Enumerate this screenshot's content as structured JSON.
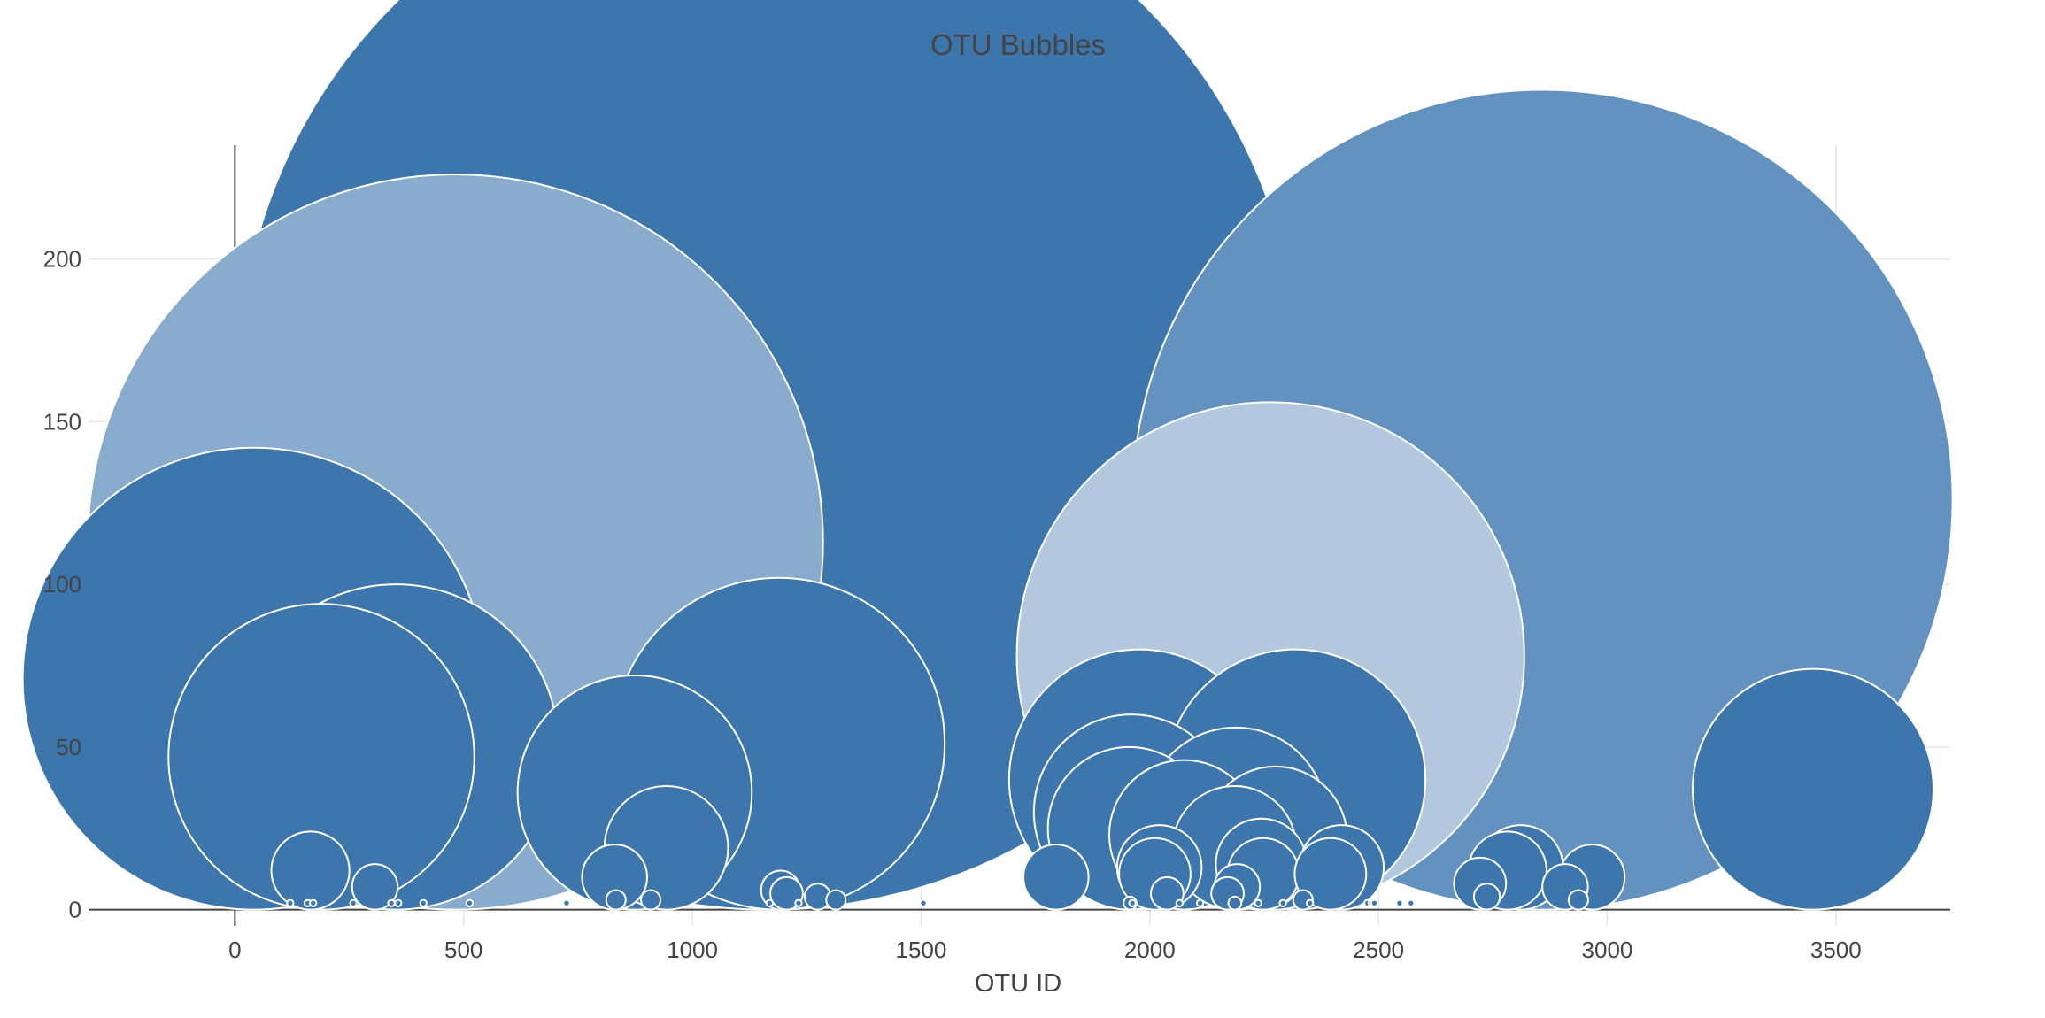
{
  "chart_data": {
    "type": "scatter",
    "title": "OTU Bubbles",
    "xlabel": "OTU ID",
    "ylabel": "",
    "xlim": [
      -320,
      3750
    ],
    "ylim": [
      -5,
      235
    ],
    "x_ticks": [
      0,
      500,
      1000,
      1500,
      2000,
      2500,
      3000,
      3500
    ],
    "y_ticks": [
      0,
      50,
      100,
      150,
      200
    ],
    "grid": true,
    "legend": "none",
    "colors": {
      "dark": "#3d76ad",
      "medium": "#6391c0",
      "light": "#89abcd",
      "pale": "#b3c8df"
    },
    "series": [
      {
        "marker": "bubble",
        "points": [
          {
            "x": 1167,
            "y": 163,
            "r": 163,
            "color": "#3d76ad"
          },
          {
            "x": 2859,
            "y": 126,
            "r": 126,
            "color": "#6391c0"
          },
          {
            "x": 482,
            "y": 113,
            "r": 113,
            "color": "#89abcd"
          },
          {
            "x": 2264,
            "y": 78,
            "r": 78,
            "color": "#b3c8df"
          },
          {
            "x": 41,
            "y": 71,
            "r": 71,
            "color": "#3d76ad"
          },
          {
            "x": 1189,
            "y": 51,
            "r": 51,
            "color": "#3d76ad"
          },
          {
            "x": 352,
            "y": 50,
            "r": 50,
            "color": "#3d76ad"
          },
          {
            "x": 189,
            "y": 47,
            "r": 47,
            "color": "#3d76ad"
          },
          {
            "x": 1977,
            "y": 40,
            "r": 40,
            "color": "#3d76ad"
          },
          {
            "x": 2318,
            "y": 40,
            "r": 40,
            "color": "#3d76ad"
          },
          {
            "x": 3450,
            "y": 37,
            "r": 37,
            "color": "#3d76ad"
          },
          {
            "x": 874,
            "y": 36,
            "r": 36,
            "color": "#3d76ad"
          },
          {
            "x": 1960,
            "y": 30,
            "r": 30,
            "color": "#3d76ad"
          },
          {
            "x": 2188,
            "y": 28,
            "r": 28,
            "color": "#3d76ad"
          },
          {
            "x": 1955,
            "y": 25,
            "r": 25,
            "color": "#3d76ad"
          },
          {
            "x": 2075,
            "y": 23,
            "r": 23,
            "color": "#3d76ad"
          },
          {
            "x": 2275,
            "y": 22,
            "r": 22,
            "color": "#3d76ad"
          },
          {
            "x": 943,
            "y": 19,
            "r": 19,
            "color": "#3d76ad"
          },
          {
            "x": 2185,
            "y": 19,
            "r": 19,
            "color": "#3d76ad"
          },
          {
            "x": 2244,
            "y": 14,
            "r": 14,
            "color": "#3d76ad"
          },
          {
            "x": 2021,
            "y": 13,
            "r": 13,
            "color": "#3d76ad"
          },
          {
            "x": 2419,
            "y": 13,
            "r": 13,
            "color": "#3d76ad"
          },
          {
            "x": 2811,
            "y": 13,
            "r": 13,
            "color": "#3d76ad"
          },
          {
            "x": 165,
            "y": 12,
            "r": 12,
            "color": "#3d76ad"
          },
          {
            "x": 2782,
            "y": 12,
            "r": 12,
            "color": "#3d76ad"
          },
          {
            "x": 2011,
            "y": 11,
            "r": 11,
            "color": "#3d76ad"
          },
          {
            "x": 2248,
            "y": 11,
            "r": 11,
            "color": "#3d76ad"
          },
          {
            "x": 2395,
            "y": 11,
            "r": 11,
            "color": "#3d76ad"
          },
          {
            "x": 830,
            "y": 10,
            "r": 10,
            "color": "#3d76ad"
          },
          {
            "x": 1795,
            "y": 10,
            "r": 10,
            "color": "#3d76ad"
          },
          {
            "x": 2967,
            "y": 10,
            "r": 10,
            "color": "#3d76ad"
          },
          {
            "x": 2722,
            "y": 8,
            "r": 8,
            "color": "#3d76ad"
          },
          {
            "x": 306,
            "y": 7,
            "r": 7,
            "color": "#3d76ad"
          },
          {
            "x": 2191,
            "y": 7,
            "r": 7,
            "color": "#3d76ad"
          },
          {
            "x": 2908,
            "y": 7,
            "r": 7,
            "color": "#3d76ad"
          },
          {
            "x": 1193,
            "y": 6,
            "r": 6,
            "color": "#3d76ad"
          },
          {
            "x": 1206,
            "y": 5,
            "r": 5,
            "color": "#3d76ad"
          },
          {
            "x": 2038,
            "y": 5,
            "r": 5,
            "color": "#3d76ad"
          },
          {
            "x": 2170,
            "y": 5,
            "r": 5,
            "color": "#3d76ad"
          },
          {
            "x": 1274,
            "y": 4,
            "r": 4,
            "color": "#3d76ad"
          },
          {
            "x": 2737,
            "y": 4,
            "r": 4,
            "color": "#3d76ad"
          },
          {
            "x": 833,
            "y": 3,
            "r": 3,
            "color": "#3d76ad"
          },
          {
            "x": 909,
            "y": 3,
            "r": 3,
            "color": "#3d76ad"
          },
          {
            "x": 1314,
            "y": 3,
            "r": 3,
            "color": "#3d76ad"
          },
          {
            "x": 2335,
            "y": 3,
            "r": 3,
            "color": "#3d76ad"
          },
          {
            "x": 2937,
            "y": 3,
            "r": 3,
            "color": "#3d76ad"
          },
          {
            "x": 1957,
            "y": 2,
            "r": 2,
            "color": "#3d76ad"
          },
          {
            "x": 2186,
            "y": 2,
            "r": 2,
            "color": "#3d76ad"
          },
          {
            "x": 121,
            "y": 2,
            "r": 1,
            "color": "#3d76ad"
          },
          {
            "x": 159,
            "y": 2,
            "r": 1,
            "color": "#3d76ad"
          },
          {
            "x": 171,
            "y": 2,
            "r": 1,
            "color": "#3d76ad"
          },
          {
            "x": 259,
            "y": 2,
            "r": 1,
            "color": "#3d76ad"
          },
          {
            "x": 342,
            "y": 2,
            "r": 1,
            "color": "#3d76ad"
          },
          {
            "x": 357,
            "y": 2,
            "r": 1,
            "color": "#3d76ad"
          },
          {
            "x": 412,
            "y": 2,
            "r": 1,
            "color": "#3d76ad"
          },
          {
            "x": 513,
            "y": 2,
            "r": 1,
            "color": "#3d76ad"
          },
          {
            "x": 725,
            "y": 2,
            "r": 1,
            "color": "#3d76ad"
          },
          {
            "x": 1169,
            "y": 2,
            "r": 1,
            "color": "#3d76ad"
          },
          {
            "x": 1232,
            "y": 2,
            "r": 1,
            "color": "#3d76ad"
          },
          {
            "x": 1505,
            "y": 2,
            "r": 1,
            "color": "#3d76ad"
          },
          {
            "x": 1962,
            "y": 2,
            "r": 1,
            "color": "#3d76ad"
          },
          {
            "x": 2065,
            "y": 2,
            "r": 1,
            "color": "#3d76ad"
          },
          {
            "x": 2110,
            "y": 2,
            "r": 1,
            "color": "#3d76ad"
          },
          {
            "x": 2237,
            "y": 2,
            "r": 1,
            "color": "#3d76ad"
          },
          {
            "x": 2291,
            "y": 2,
            "r": 1,
            "color": "#3d76ad"
          },
          {
            "x": 2350,
            "y": 2,
            "r": 1,
            "color": "#3d76ad"
          },
          {
            "x": 2476,
            "y": 2,
            "r": 1,
            "color": "#3d76ad"
          },
          {
            "x": 2485,
            "y": 2,
            "r": 1,
            "color": "#3d76ad"
          },
          {
            "x": 2491,
            "y": 2,
            "r": 1,
            "color": "#3d76ad"
          },
          {
            "x": 2546,
            "y": 2,
            "r": 1,
            "color": "#3d76ad"
          },
          {
            "x": 2571,
            "y": 2,
            "r": 1,
            "color": "#3d76ad"
          }
        ]
      }
    ]
  }
}
